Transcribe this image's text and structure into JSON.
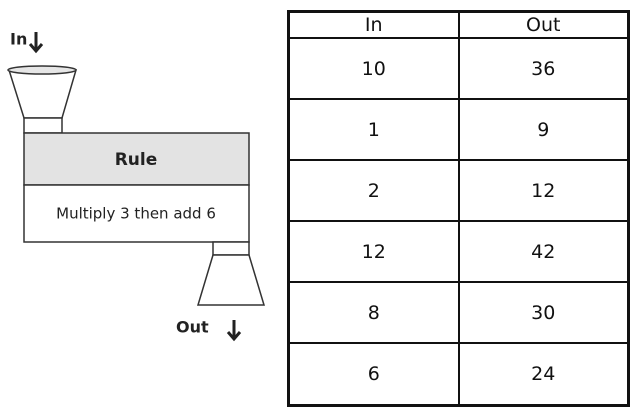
{
  "machine": {
    "input_label": "In",
    "rule_title": "Rule",
    "rule": "Multiply 3 then add 6",
    "output_label": "Out"
  },
  "table": {
    "header": [
      "In",
      "Out"
    ],
    "rows": [
      [
        "10",
        "36"
      ],
      [
        "1",
        "9"
      ],
      [
        "2",
        "12"
      ],
      [
        "12",
        "42"
      ],
      [
        "8",
        "30"
      ],
      [
        "6",
        "24"
      ]
    ]
  }
}
